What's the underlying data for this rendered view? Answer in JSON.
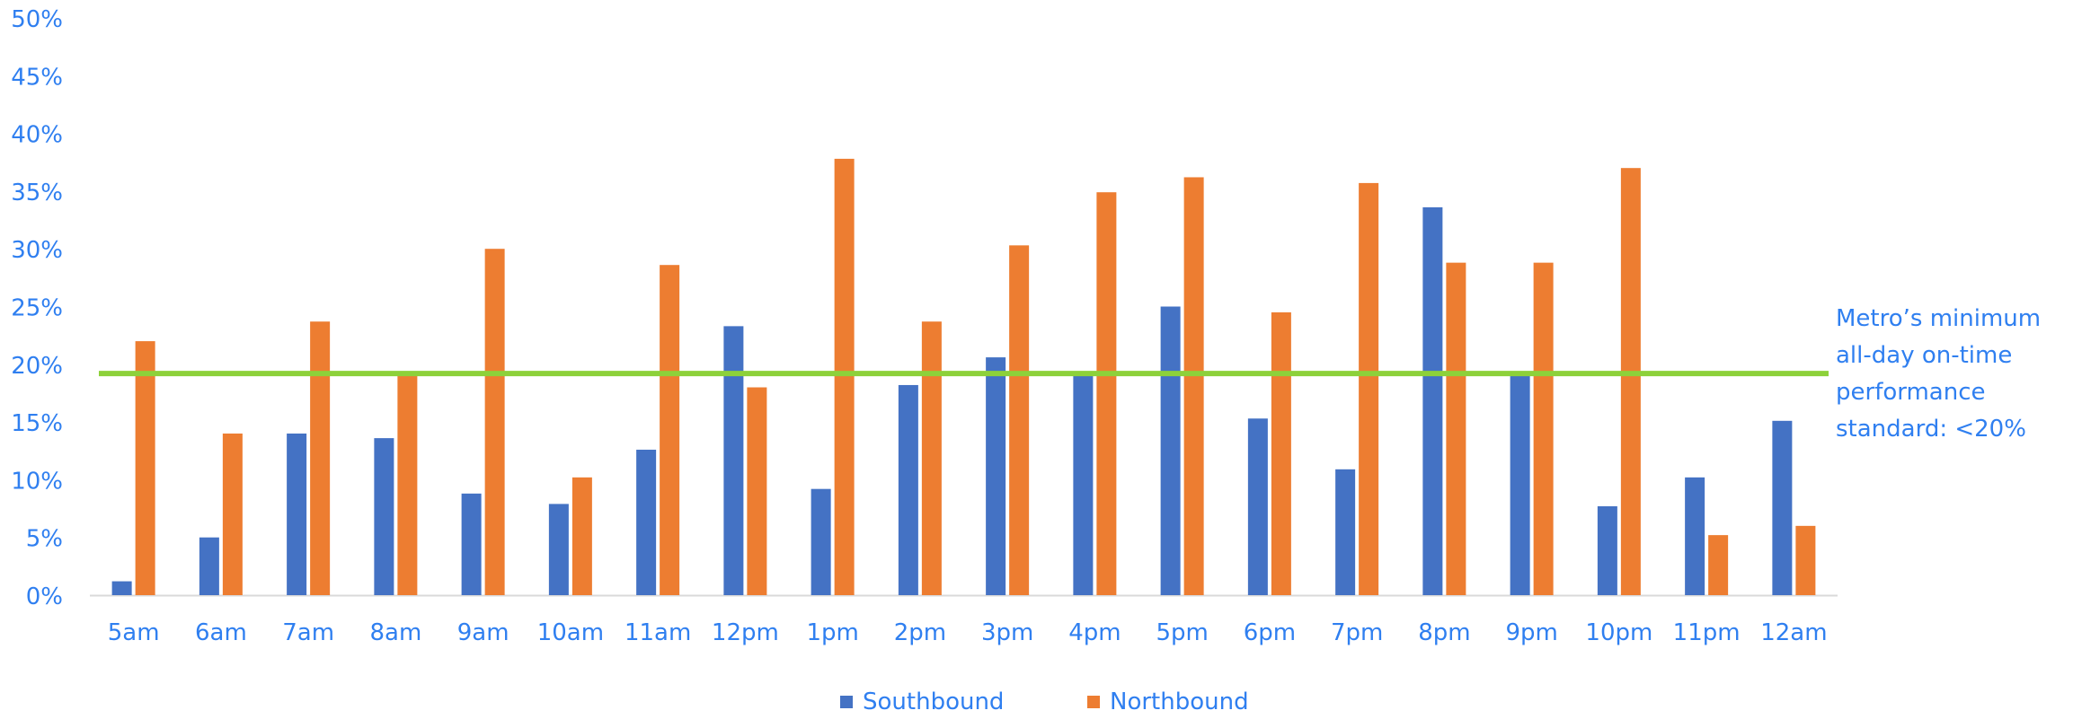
{
  "chart_data": {
    "type": "bar",
    "title": "",
    "xlabel": "",
    "ylabel": "",
    "categories": [
      "5am",
      "6am",
      "7am",
      "8am",
      "9am",
      "10am",
      "11am",
      "12pm",
      "1pm",
      "2pm",
      "3pm",
      "4pm",
      "5pm",
      "6pm",
      "7pm",
      "8pm",
      "9pm",
      "10pm",
      "11pm",
      "12am"
    ],
    "series": [
      {
        "name": "Southbound",
        "color": "#4472C4",
        "values": [
          1.2,
          5.0,
          14.0,
          13.6,
          8.8,
          7.9,
          12.6,
          23.3,
          9.2,
          18.2,
          20.6,
          19.3,
          25.0,
          15.3,
          10.9,
          33.6,
          19.2,
          7.7,
          10.2,
          15.1
        ]
      },
      {
        "name": "Northbound",
        "color": "#ED7D31",
        "values": [
          22.0,
          14.0,
          23.7,
          19.4,
          30.0,
          10.2,
          28.6,
          18.0,
          37.8,
          23.7,
          30.3,
          34.9,
          36.2,
          24.5,
          35.7,
          28.8,
          28.8,
          37.0,
          5.2,
          6.0
        ]
      }
    ],
    "ylim": [
      0,
      50
    ],
    "yticks": [
      "0%",
      "5%",
      "10%",
      "15%",
      "20%",
      "25%",
      "30%",
      "35%",
      "40%",
      "45%",
      "50%"
    ],
    "grid": false,
    "legend_position": "bottom",
    "reference_line": {
      "value": 19.2,
      "color": "#8DD13A",
      "label_lines": [
        "Metro’s minimum",
        "all-day on-time",
        "performance",
        "standard: <20%"
      ]
    },
    "text_color": "#2F7FF0"
  }
}
